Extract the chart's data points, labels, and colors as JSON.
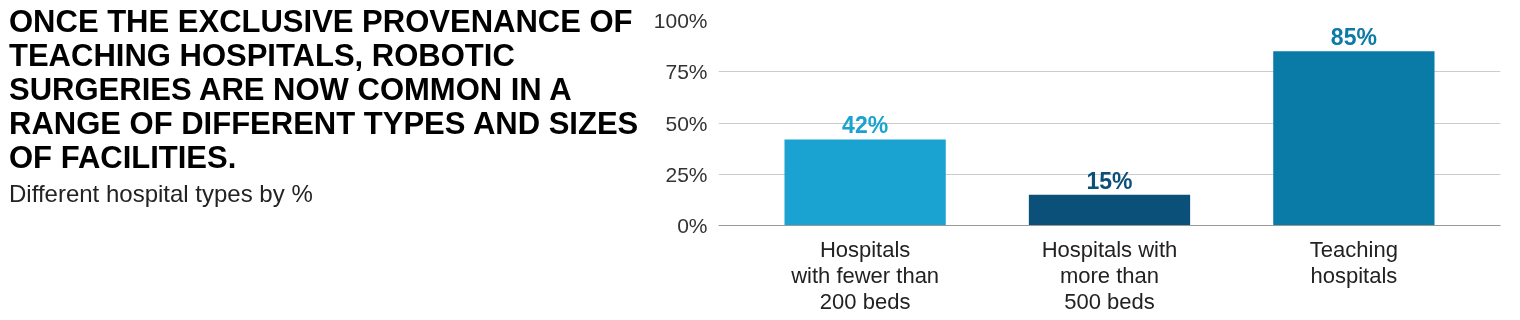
{
  "chart_data": {
    "type": "bar",
    "title": "ONCE THE EXCLUSIVE PROVENANCE OF TEACHING HOSPITALS, ROBOTIC SURGERIES ARE NOW COMMON IN A RANGE OF DIFFERENT TYPES AND SIZES OF FACILITIES.",
    "subtitle": "Different hospital types by %",
    "categories": [
      "Hospitals\nwith fewer than\n200 beds",
      "Hospitals with\nmore than\n500 beds",
      "Teaching\nhospitals"
    ],
    "values": [
      42,
      15,
      85
    ],
    "colors": [
      "#1aa3d0",
      "#0a5078",
      "#0a7aa6"
    ],
    "value_labels": [
      "42%",
      "15%",
      "85%"
    ],
    "ylim": [
      0,
      100
    ],
    "yticks": [
      {
        "value": 0,
        "label": "0%"
      },
      {
        "value": 25,
        "label": "25%"
      },
      {
        "value": 50,
        "label": "50%"
      },
      {
        "value": 75,
        "label": "75%"
      },
      {
        "value": 100,
        "label": "100%"
      }
    ],
    "grid": "y"
  }
}
